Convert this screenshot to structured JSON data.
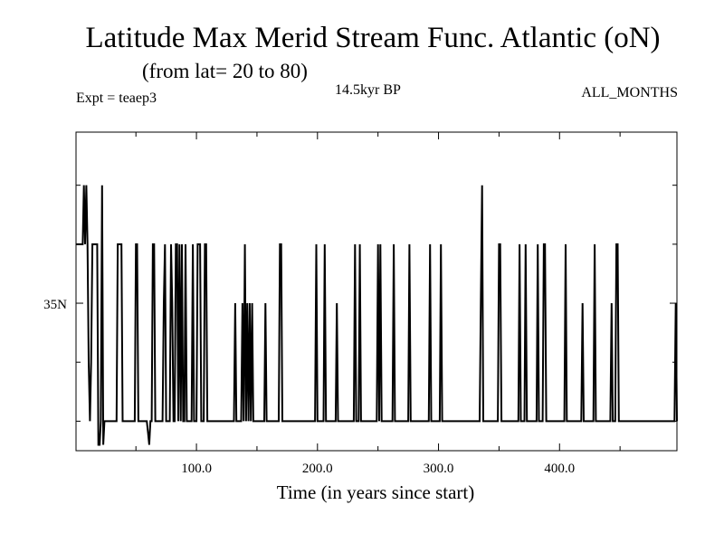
{
  "chart_data": {
    "type": "line",
    "title": "Latitude Max Merid Stream Func. Atlantic (oN)",
    "subtitle": "(from lat= 20 to 80)",
    "experiment_label": "Expt = teaep3",
    "period_label": "14.5kyr BP",
    "months_label": "ALL_MONTHS",
    "xlabel": "Time (in years since start)",
    "ylabel": "",
    "xlim": [
      0.5,
      497
    ],
    "ylim": [
      22.5,
      49.5
    ],
    "x_ticks": [
      100.0,
      200.0,
      300.0,
      400.0
    ],
    "x_tick_labels": [
      "100.0",
      "200.0",
      "300.0",
      "400.0"
    ],
    "y_ticks": [
      35
    ],
    "y_tick_labels": [
      "35N"
    ],
    "grid": false,
    "series": [
      {
        "points": [
          [
            0.5,
            40
          ],
          [
            6,
            40
          ],
          [
            7,
            45
          ],
          [
            8,
            40
          ],
          [
            9,
            45
          ],
          [
            10,
            40
          ],
          [
            11,
            30
          ],
          [
            12,
            25
          ],
          [
            13,
            30
          ],
          [
            14,
            40
          ],
          [
            18,
            40
          ],
          [
            19,
            23
          ],
          [
            20,
            23
          ],
          [
            21,
            25
          ],
          [
            22,
            45
          ],
          [
            23,
            23
          ],
          [
            24,
            25
          ],
          [
            27,
            25
          ],
          [
            34,
            25
          ],
          [
            35,
            40
          ],
          [
            38,
            40
          ],
          [
            39,
            25
          ],
          [
            49,
            25
          ],
          [
            50,
            40
          ],
          [
            51,
            40
          ],
          [
            52,
            25
          ],
          [
            59,
            25
          ],
          [
            60,
            24
          ],
          [
            61,
            23
          ],
          [
            62,
            25
          ],
          [
            63,
            25
          ],
          [
            64,
            40
          ],
          [
            65,
            40
          ],
          [
            66,
            25
          ],
          [
            72,
            25
          ],
          [
            73,
            35
          ],
          [
            74,
            40
          ],
          [
            75,
            25
          ],
          [
            78,
            25
          ],
          [
            79,
            40
          ],
          [
            80,
            35
          ],
          [
            81,
            25
          ],
          [
            82,
            25
          ],
          [
            83,
            40
          ],
          [
            84,
            40
          ],
          [
            85,
            25
          ],
          [
            86,
            40
          ],
          [
            87,
            25
          ],
          [
            88,
            40
          ],
          [
            89,
            25
          ],
          [
            90,
            25
          ],
          [
            91,
            40
          ],
          [
            92,
            25
          ],
          [
            96,
            25
          ],
          [
            97,
            40
          ],
          [
            98,
            25
          ],
          [
            100,
            25
          ],
          [
            101,
            40
          ],
          [
            103,
            40
          ],
          [
            104,
            25
          ],
          [
            106,
            25
          ],
          [
            107,
            40
          ],
          [
            108,
            40
          ],
          [
            109,
            25
          ],
          [
            131,
            25
          ],
          [
            132,
            35
          ],
          [
            133,
            25
          ],
          [
            137,
            25
          ],
          [
            138,
            35
          ],
          [
            139,
            25
          ],
          [
            140,
            40
          ],
          [
            141,
            25
          ],
          [
            142,
            35
          ],
          [
            143,
            25
          ],
          [
            144,
            35
          ],
          [
            145,
            25
          ],
          [
            146,
            35
          ],
          [
            147,
            25
          ],
          [
            156,
            25
          ],
          [
            157,
            35
          ],
          [
            158,
            25
          ],
          [
            168,
            25
          ],
          [
            169,
            40
          ],
          [
            170,
            40
          ],
          [
            171,
            25
          ],
          [
            198,
            25
          ],
          [
            199,
            40
          ],
          [
            200,
            25
          ],
          [
            205,
            25
          ],
          [
            206,
            40
          ],
          [
            207,
            25
          ],
          [
            215,
            25
          ],
          [
            216,
            35
          ],
          [
            217,
            25
          ],
          [
            230,
            25
          ],
          [
            231,
            40
          ],
          [
            232,
            25
          ],
          [
            234,
            25
          ],
          [
            235,
            40
          ],
          [
            236,
            25
          ],
          [
            249,
            25
          ],
          [
            250,
            40
          ],
          [
            251,
            25
          ],
          [
            252,
            40
          ],
          [
            253,
            25
          ],
          [
            262,
            25
          ],
          [
            263,
            40
          ],
          [
            264,
            25
          ],
          [
            275,
            25
          ],
          [
            276,
            40
          ],
          [
            277,
            25
          ],
          [
            292,
            25
          ],
          [
            293,
            40
          ],
          [
            294,
            25
          ],
          [
            301,
            25
          ],
          [
            302,
            40
          ],
          [
            303,
            25
          ],
          [
            334,
            25
          ],
          [
            335,
            35
          ],
          [
            336,
            45
          ],
          [
            337,
            25
          ],
          [
            349,
            25
          ],
          [
            350,
            40
          ],
          [
            351,
            40
          ],
          [
            352,
            25
          ],
          [
            366,
            25
          ],
          [
            367,
            40
          ],
          [
            368,
            25
          ],
          [
            371,
            25
          ],
          [
            372,
            40
          ],
          [
            373,
            25
          ],
          [
            381,
            25
          ],
          [
            382,
            40
          ],
          [
            383,
            25
          ],
          [
            386,
            25
          ],
          [
            387,
            40
          ],
          [
            388,
            40
          ],
          [
            389,
            25
          ],
          [
            404,
            25
          ],
          [
            405,
            40
          ],
          [
            406,
            25
          ],
          [
            418,
            25
          ],
          [
            419,
            35
          ],
          [
            420,
            25
          ],
          [
            428,
            25
          ],
          [
            429,
            40
          ],
          [
            430,
            25
          ],
          [
            442,
            25
          ],
          [
            443,
            35
          ],
          [
            444,
            25
          ],
          [
            446,
            25
          ],
          [
            447,
            40
          ],
          [
            448,
            40
          ],
          [
            449,
            25
          ],
          [
            495,
            25
          ],
          [
            496,
            35
          ],
          [
            497,
            25
          ]
        ]
      }
    ]
  }
}
